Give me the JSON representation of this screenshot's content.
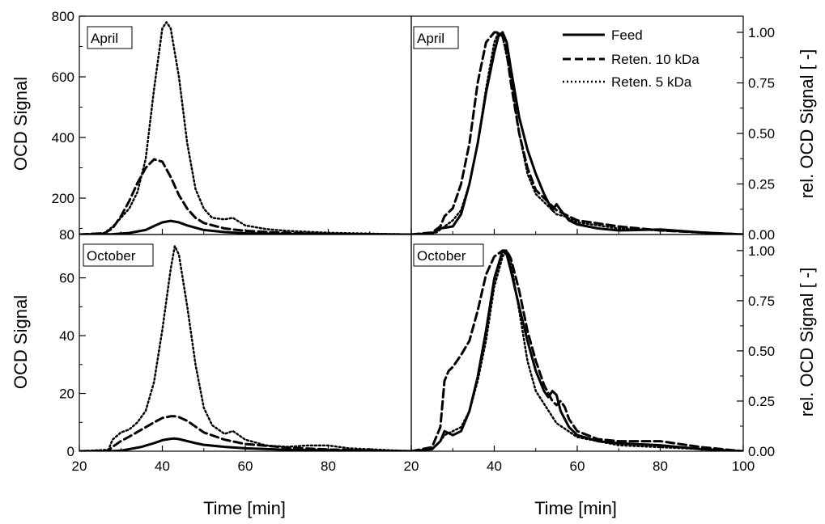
{
  "chart_data": [
    {
      "type": "line",
      "panel": "top-left",
      "tag": "April",
      "ylabel": "OCD Signal",
      "ylim": [
        80,
        800
      ],
      "yticks": [
        "80",
        "200",
        "400",
        "600",
        "800"
      ],
      "xlim": [
        20,
        100
      ],
      "series": [
        {
          "name": "Feed",
          "style": "solid",
          "x": [
            20,
            28,
            32,
            36,
            38,
            40,
            42,
            44,
            46,
            50,
            55,
            60,
            70,
            80,
            100
          ],
          "y": [
            80,
            81,
            85,
            95,
            108,
            120,
            125,
            120,
            110,
            95,
            88,
            84,
            82,
            81,
            80
          ]
        },
        {
          "name": "Reten. 10 kDa",
          "style": "dashed",
          "x": [
            20,
            26,
            28,
            30,
            32,
            34,
            36,
            38,
            40,
            42,
            44,
            46,
            48,
            50,
            55,
            60,
            70,
            80,
            100
          ],
          "y": [
            80,
            84,
            100,
            140,
            190,
            250,
            300,
            328,
            320,
            270,
            210,
            165,
            135,
            118,
            100,
            92,
            85,
            82,
            80
          ]
        },
        {
          "name": "Reten. 5 kDa",
          "style": "dotted",
          "x": [
            20,
            26,
            28,
            30,
            32,
            34,
            36,
            38,
            40,
            41,
            42,
            44,
            46,
            48,
            50,
            52,
            55,
            57,
            60,
            65,
            70,
            80,
            100
          ],
          "y": [
            80,
            85,
            105,
            135,
            165,
            220,
            330,
            560,
            760,
            780,
            760,
            600,
            380,
            230,
            165,
            135,
            130,
            135,
            110,
            98,
            92,
            86,
            80
          ]
        }
      ]
    },
    {
      "type": "line",
      "panel": "top-right",
      "tag": "April",
      "ylabel": "rel. OCD Signal [ -]",
      "ylim": [
        0,
        1.08
      ],
      "yticks": [
        "0.00",
        "0.25",
        "0.50",
        "0.75",
        "1.00"
      ],
      "xlim": [
        20,
        100
      ],
      "series": [
        {
          "name": "Feed",
          "style": "solid",
          "x": [
            20,
            25,
            27,
            30,
            32,
            34,
            36,
            38,
            40,
            41,
            42,
            43,
            44,
            46,
            48,
            50,
            52,
            54,
            55,
            56,
            58,
            60,
            65,
            70,
            80,
            90,
            100
          ],
          "y": [
            0,
            0.005,
            0.03,
            0.04,
            0.1,
            0.25,
            0.45,
            0.7,
            0.9,
            0.98,
            1.0,
            0.95,
            0.82,
            0.58,
            0.42,
            0.3,
            0.2,
            0.12,
            0.15,
            0.12,
            0.07,
            0.05,
            0.03,
            0.02,
            0.025,
            0.01,
            0.0
          ]
        },
        {
          "name": "Reten. 10 kDa",
          "style": "dashed",
          "x": [
            20,
            25,
            27,
            28,
            30,
            32,
            34,
            36,
            38,
            40,
            41,
            42,
            43,
            44,
            46,
            48,
            50,
            55,
            60,
            70,
            80,
            100
          ],
          "y": [
            0,
            0.01,
            0.04,
            0.09,
            0.13,
            0.25,
            0.45,
            0.75,
            0.95,
            1.0,
            1.0,
            0.98,
            0.9,
            0.75,
            0.5,
            0.33,
            0.22,
            0.12,
            0.07,
            0.04,
            0.02,
            0.0
          ]
        },
        {
          "name": "Reten. 5 kDa",
          "style": "dotted",
          "x": [
            20,
            26,
            28,
            30,
            32,
            34,
            36,
            38,
            40,
            41,
            42,
            44,
            46,
            48,
            50,
            55,
            57,
            60,
            70,
            80,
            100
          ],
          "y": [
            0,
            0.01,
            0.04,
            0.07,
            0.12,
            0.25,
            0.45,
            0.72,
            0.95,
            1.0,
            0.98,
            0.78,
            0.5,
            0.3,
            0.2,
            0.1,
            0.09,
            0.06,
            0.03,
            0.02,
            0.0
          ]
        }
      ]
    },
    {
      "type": "line",
      "panel": "bottom-left",
      "tag": "October",
      "ylabel": "OCD Signal",
      "xlabel": "Time [min]",
      "ylim": [
        0,
        75
      ],
      "yticks": [
        "0",
        "20",
        "40",
        "60"
      ],
      "xlim": [
        20,
        100
      ],
      "xticks": [
        "20",
        "40",
        "60",
        "80"
      ],
      "series": [
        {
          "name": "Feed",
          "style": "solid",
          "x": [
            20,
            27,
            30,
            35,
            38,
            40,
            42,
            43,
            44,
            46,
            48,
            50,
            55,
            60,
            70,
            80,
            100
          ],
          "y": [
            0,
            0,
            0.2,
            1.5,
            2.8,
            3.8,
            4.3,
            4.4,
            4.2,
            3.5,
            2.8,
            2.2,
            1.5,
            1,
            0.5,
            0.3,
            0
          ]
        },
        {
          "name": "Reten. 10 kDa",
          "style": "dashed",
          "x": [
            20,
            27,
            28,
            30,
            32,
            35,
            38,
            40,
            42,
            43,
            44,
            46,
            48,
            50,
            55,
            60,
            70,
            80,
            100
          ],
          "y": [
            0,
            0.2,
            1.5,
            3.5,
            5,
            7.5,
            10,
            11.5,
            12.1,
            12.1,
            11.8,
            10.5,
            8.5,
            6.5,
            4,
            2.5,
            1.3,
            0.6,
            0
          ]
        },
        {
          "name": "Reten. 5 kDa",
          "style": "dotted",
          "x": [
            20,
            27,
            28,
            30,
            32,
            34,
            36,
            38,
            40,
            42,
            43,
            44,
            46,
            48,
            50,
            52,
            55,
            57,
            60,
            65,
            70,
            75,
            80,
            85,
            100
          ],
          "y": [
            0,
            0.5,
            4,
            6.5,
            7.5,
            10,
            14,
            24,
            42,
            63,
            71,
            68,
            50,
            30,
            15,
            9,
            6,
            7,
            4,
            2,
            1.5,
            2,
            2,
            1,
            0
          ]
        }
      ]
    },
    {
      "type": "line",
      "panel": "bottom-right",
      "tag": "October",
      "ylabel": "rel. OCD Signal [ -]",
      "xlabel": "Time [min]",
      "ylim": [
        0,
        1.08
      ],
      "yticks": [
        "0.00",
        "0.25",
        "0.50",
        "0.75",
        "1.00"
      ],
      "xlim": [
        20,
        100
      ],
      "xticks": [
        "20",
        "40",
        "60",
        "80",
        "100"
      ],
      "series": [
        {
          "name": "Feed",
          "style": "solid",
          "x": [
            20,
            25,
            27,
            28,
            30,
            32,
            34,
            36,
            38,
            40,
            42,
            43,
            44,
            46,
            48,
            50,
            52,
            53,
            54,
            55,
            56,
            58,
            60,
            65,
            70,
            80,
            90,
            100
          ],
          "y": [
            0,
            0.01,
            0.05,
            0.1,
            0.08,
            0.1,
            0.2,
            0.37,
            0.6,
            0.86,
            1.0,
            0.98,
            0.9,
            0.72,
            0.55,
            0.4,
            0.3,
            0.27,
            0.3,
            0.28,
            0.2,
            0.12,
            0.08,
            0.05,
            0.04,
            0.03,
            0.01,
            0.0
          ]
        },
        {
          "name": "Reten. 10 kDa",
          "style": "dashed",
          "x": [
            20,
            25,
            27,
            28,
            29,
            30,
            32,
            34,
            36,
            38,
            40,
            42,
            43,
            44,
            46,
            48,
            50,
            52,
            54,
            55,
            56,
            57,
            58,
            60,
            65,
            70,
            80,
            90,
            100
          ],
          "y": [
            0,
            0.02,
            0.12,
            0.35,
            0.4,
            0.42,
            0.48,
            0.55,
            0.7,
            0.88,
            0.97,
            1.0,
            1.0,
            0.96,
            0.8,
            0.6,
            0.45,
            0.33,
            0.25,
            0.23,
            0.25,
            0.22,
            0.16,
            0.1,
            0.06,
            0.05,
            0.05,
            0.02,
            0.0
          ]
        },
        {
          "name": "Reten. 5 kDa",
          "style": "dotted",
          "x": [
            20,
            25,
            27,
            28,
            30,
            32,
            34,
            36,
            38,
            40,
            42,
            43,
            44,
            46,
            48,
            50,
            55,
            60,
            70,
            80,
            100
          ],
          "y": [
            0,
            0.01,
            0.05,
            0.08,
            0.1,
            0.12,
            0.2,
            0.35,
            0.55,
            0.82,
            0.97,
            1.0,
            0.94,
            0.7,
            0.45,
            0.3,
            0.14,
            0.07,
            0.03,
            0.02,
            0.0
          ]
        }
      ]
    }
  ],
  "legend": {
    "placement": "top-right of right panels",
    "entries": [
      "Feed",
      "Reten. 10 kDa",
      "Reten. 5 kDa"
    ]
  }
}
